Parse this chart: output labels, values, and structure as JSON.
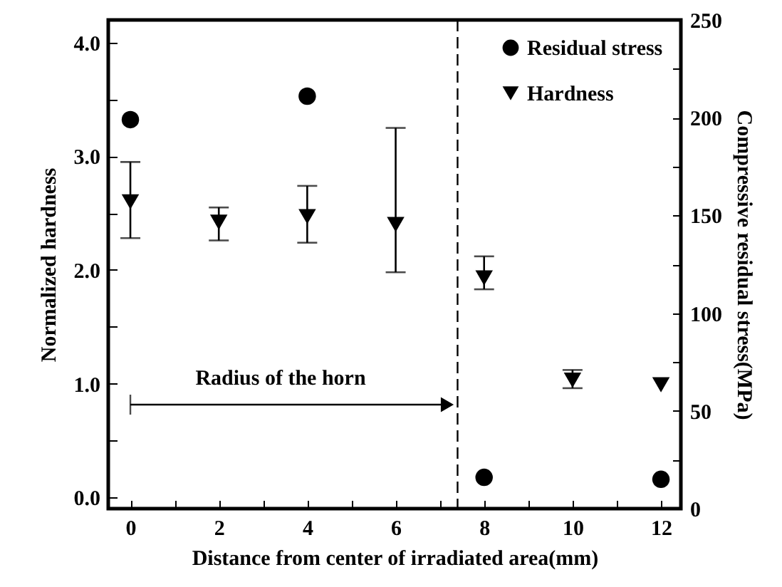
{
  "chart_data": {
    "type": "scatter",
    "xlabel": "Distance from center of irradiated area(mm)",
    "ylabel": "Normalized hardness",
    "y2label": "Compressive residual stress(MPa)",
    "xlim": [
      -0.5,
      12.45
    ],
    "xticks": [
      0,
      {
        "value": 1,
        "label": null
      },
      2,
      {
        "value": 3,
        "label": null
      },
      4,
      {
        "value": 5,
        "label": null
      },
      6,
      {
        "value": 7,
        "label": null
      },
      8,
      {
        "value": 9,
        "label": null
      },
      10,
      {
        "value": 11,
        "label": null
      },
      12
    ],
    "ylim": [
      -0.1,
      4.2
    ],
    "yticks": [
      {
        "value": 0,
        "label": "0.0"
      },
      {
        "value": 0.5,
        "label": null
      },
      {
        "value": 1,
        "label": "1.0"
      },
      {
        "value": 1.5,
        "label": null
      },
      {
        "value": 2,
        "label": "2.0"
      },
      {
        "value": 2.5,
        "label": null
      },
      {
        "value": 3,
        "label": "3.0"
      },
      {
        "value": 3.5,
        "label": null
      },
      {
        "value": 4,
        "label": "4.0"
      }
    ],
    "y2lim": [
      0,
      250
    ],
    "y2ticks": [
      0,
      {
        "value": 25,
        "label": null
      },
      50,
      {
        "value": 75,
        "label": null
      },
      100,
      {
        "value": 125,
        "label": null
      },
      150,
      {
        "value": 175,
        "label": null
      },
      200,
      {
        "value": 225,
        "label": null
      },
      250
    ],
    "grid": false,
    "legend": "top right",
    "series": [
      {
        "name": "Residual stress",
        "color": "#000000",
        "marker": "circle",
        "axis": "y2",
        "x": [
          0,
          4,
          8,
          12
        ],
        "values": [
          199,
          211,
          16,
          15
        ]
      },
      {
        "name": "Hardness",
        "color": "#000000",
        "marker": "triangle",
        "x": [
          0,
          2,
          4,
          6,
          8,
          10,
          12
        ],
        "values": [
          2.6,
          2.42,
          2.47,
          2.4,
          1.93,
          1.03,
          0.99
        ],
        "errors": [
          [
            2.28,
            2.95
          ],
          [
            2.26,
            2.55
          ],
          [
            2.24,
            2.74
          ],
          [
            1.98,
            3.25
          ],
          [
            1.83,
            2.12
          ],
          [
            0.96,
            1.12
          ],
          null
        ]
      }
    ],
    "ref_lines": [
      {
        "axis": "x",
        "value": 7.4,
        "line_style": "dashed"
      }
    ],
    "annotations": [
      "Radius of the horn"
    ]
  }
}
